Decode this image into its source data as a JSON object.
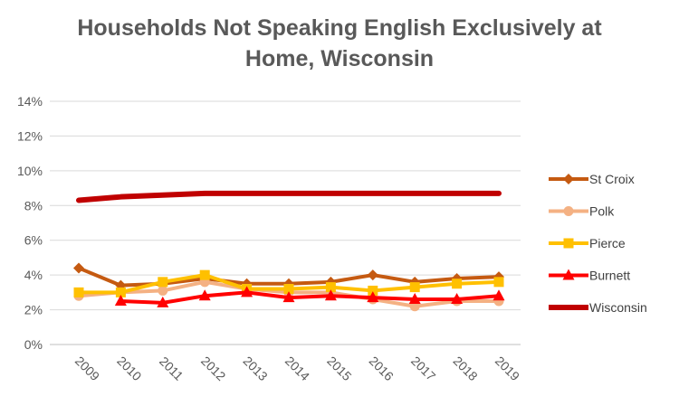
{
  "chart_data": {
    "type": "line",
    "title_line1": "Households Not Speaking English Exclusively at",
    "title_line2": "Home, Wisconsin",
    "xlabel": "",
    "ylabel": "",
    "ylim": [
      0,
      14
    ],
    "y_ticks": [
      "0%",
      "2%",
      "4%",
      "6%",
      "8%",
      "10%",
      "12%",
      "14%"
    ],
    "grid": true,
    "legend_position": "right",
    "categories": [
      "2009",
      "2010",
      "2011",
      "2012",
      "2013",
      "2014",
      "2015",
      "2016",
      "2017",
      "2018",
      "2019"
    ],
    "series": [
      {
        "name": "St Croix",
        "color": "#C55A11",
        "marker": "diamond",
        "values": [
          4.4,
          3.4,
          3.5,
          3.8,
          3.5,
          3.5,
          3.6,
          4.0,
          3.6,
          3.8,
          3.9
        ]
      },
      {
        "name": "Polk",
        "color": "#F4B183",
        "marker": "circle",
        "values": [
          2.8,
          3.0,
          3.1,
          3.6,
          3.2,
          3.0,
          3.0,
          2.6,
          2.2,
          2.5,
          2.5
        ]
      },
      {
        "name": "Pierce",
        "color": "#FFC000",
        "marker": "square",
        "values": [
          3.0,
          3.0,
          3.6,
          4.0,
          3.2,
          3.2,
          3.3,
          3.1,
          3.3,
          3.5,
          3.6
        ]
      },
      {
        "name": "Burnett",
        "color": "#FF0000",
        "marker": "triangle",
        "values": [
          null,
          2.5,
          2.4,
          2.8,
          3.0,
          2.7,
          2.8,
          2.7,
          2.6,
          2.6,
          2.8
        ]
      },
      {
        "name": "Wisconsin",
        "color": "#C00000",
        "marker": "none",
        "values": [
          8.3,
          8.5,
          8.6,
          8.7,
          8.7,
          8.7,
          8.7,
          8.7,
          8.7,
          8.7,
          8.7
        ]
      }
    ]
  }
}
